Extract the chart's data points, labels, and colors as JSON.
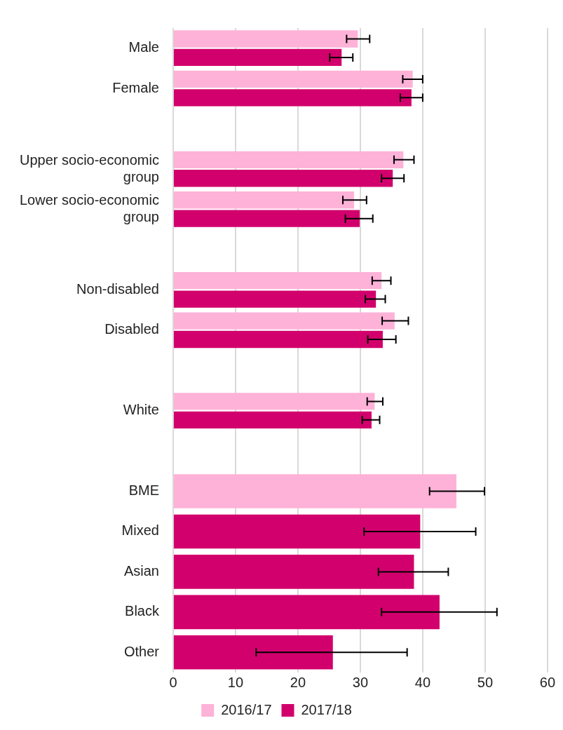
{
  "chart_data": {
    "type": "bar",
    "orientation": "horizontal",
    "categories": [
      "Male",
      "Female",
      null,
      "Upper socio-economic group",
      "Lower socio-economic group",
      null,
      "Non-disabled",
      "Disabled",
      null,
      "White",
      null,
      "BME",
      "Mixed",
      "Asian",
      "Black",
      "Other"
    ],
    "series": [
      {
        "name": "2016/17",
        "color": "#feb2d8",
        "values": [
          29.6,
          38.4,
          null,
          36.9,
          29.0,
          null,
          33.4,
          35.5,
          null,
          32.3,
          null,
          45.4,
          null,
          null,
          null,
          null
        ],
        "errors": [
          [
            27.8,
            31.5
          ],
          [
            36.8,
            40.0
          ],
          null,
          [
            35.4,
            38.6
          ],
          [
            27.2,
            31.0
          ],
          null,
          [
            31.9,
            34.9
          ],
          [
            33.5,
            37.7
          ],
          null,
          [
            31.1,
            33.6
          ],
          null,
          [
            41.1,
            49.9
          ],
          null,
          null,
          null,
          null
        ]
      },
      {
        "name": "2017/18",
        "color": "#d2006c",
        "values": [
          27.0,
          38.2,
          null,
          35.2,
          29.9,
          null,
          32.5,
          33.6,
          null,
          31.8,
          null,
          null,
          39.6,
          38.6,
          42.7,
          25.6
        ],
        "errors": [
          [
            25.1,
            28.8
          ],
          [
            36.4,
            40.0
          ],
          null,
          [
            33.4,
            37.0
          ],
          [
            27.6,
            32.0
          ],
          null,
          [
            30.8,
            34.0
          ],
          [
            31.2,
            35.7
          ],
          null,
          [
            30.3,
            33.1
          ],
          null,
          null,
          [
            30.6,
            48.5
          ],
          [
            32.9,
            44.1
          ],
          [
            33.4,
            51.9
          ],
          [
            13.3,
            37.5
          ]
        ]
      }
    ],
    "xlim": [
      0,
      60
    ],
    "xticks": [
      0,
      10,
      20,
      30,
      40,
      50,
      60
    ],
    "grid": "x",
    "legend": "bottom"
  }
}
